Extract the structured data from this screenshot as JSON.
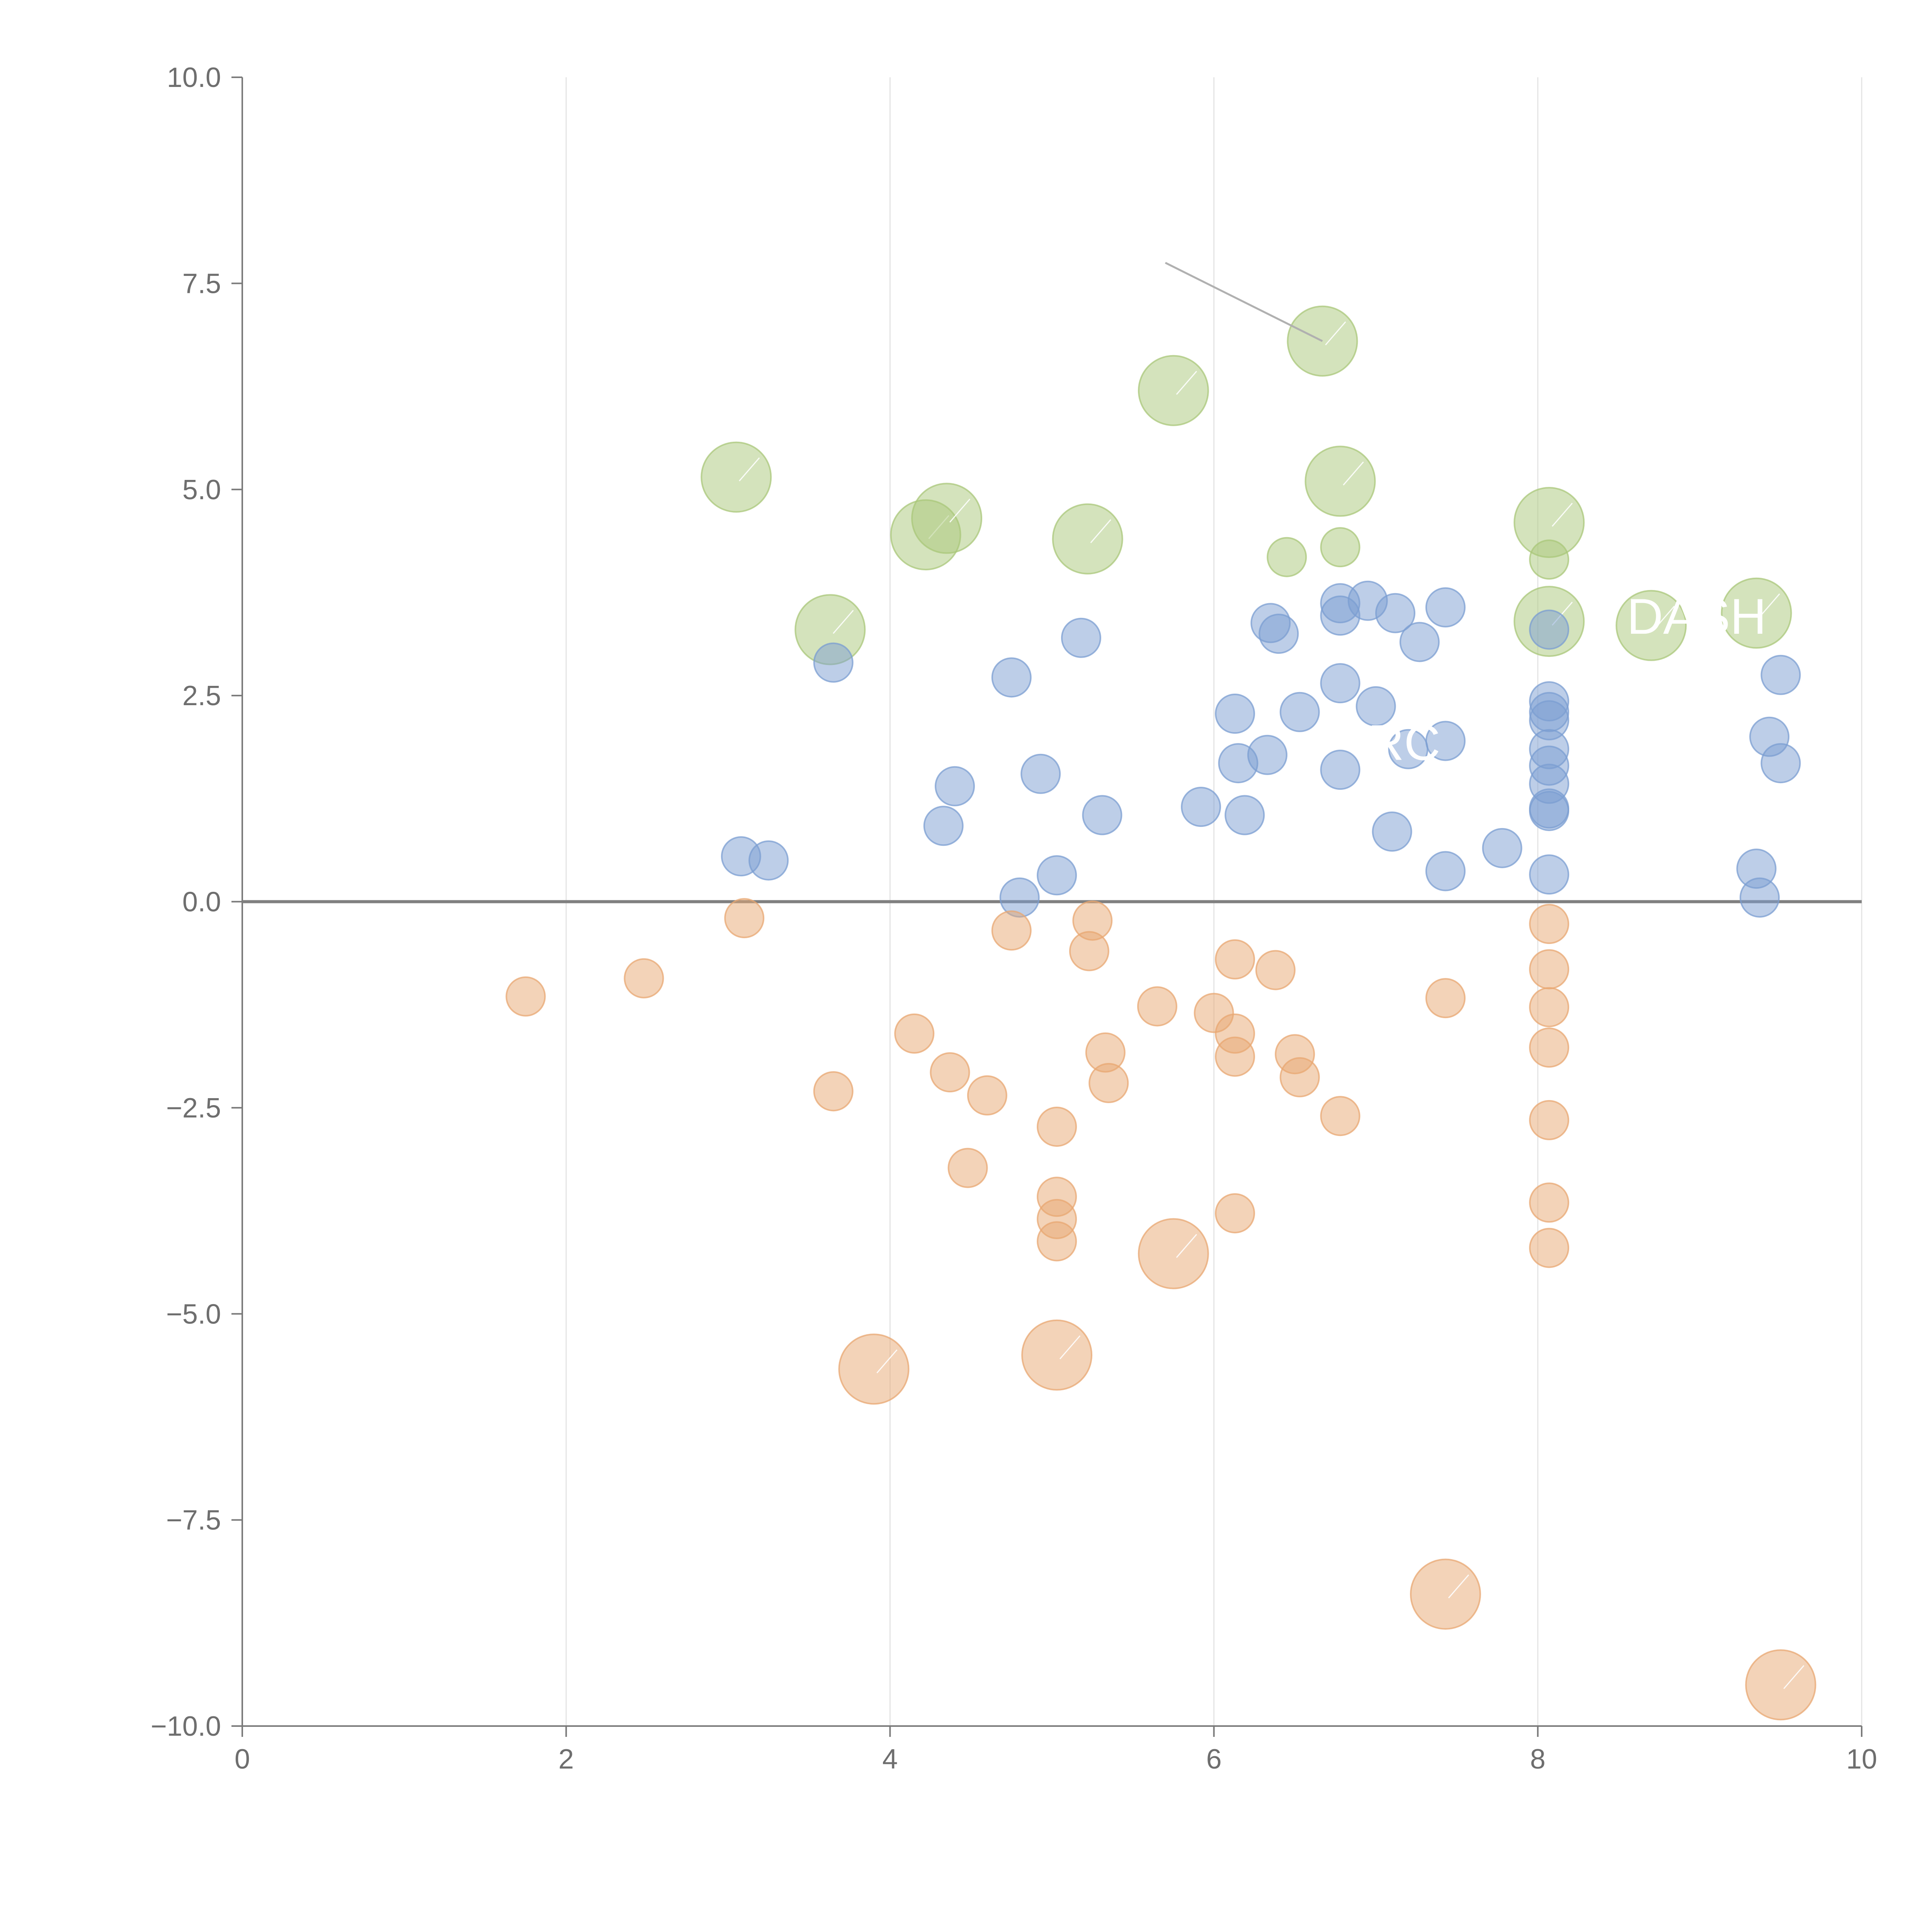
{
  "chart_data": {
    "type": "scatter",
    "subtype": "bubble",
    "title": "",
    "xlabel": "",
    "ylabel": "",
    "xlim": [
      0,
      10
    ],
    "ylim": [
      -10,
      10
    ],
    "x_ticks": [
      0,
      2,
      4,
      6,
      8,
      10
    ],
    "x_tick_labels": [
      "0",
      "2",
      "4",
      "6",
      "8",
      "10"
    ],
    "y_ticks": [
      -10,
      -7.5,
      -5,
      -2.5,
      0,
      2.5,
      5,
      7.5,
      10
    ],
    "y_tick_labels": [
      "−10.0",
      "−7.5",
      "−5.0",
      "−2.5",
      "0.0",
      "2.5",
      "5.0",
      "7.5",
      "10.0"
    ],
    "grid": "vertical",
    "reference_line_y": 0,
    "annotation_labels": [
      "DASH",
      "RC"
    ],
    "series": [
      {
        "name": "green",
        "color": "#a9c77a",
        "points": [
          {
            "x": 3.05,
            "y": 5.15,
            "s": 3
          },
          {
            "x": 4.22,
            "y": 4.45,
            "s": 3
          },
          {
            "x": 4.35,
            "y": 4.65,
            "s": 3
          },
          {
            "x": 5.75,
            "y": 6.2,
            "s": 3
          },
          {
            "x": 6.67,
            "y": 6.8,
            "s": 3
          },
          {
            "x": 6.78,
            "y": 5.1,
            "s": 3
          },
          {
            "x": 5.22,
            "y": 4.4,
            "s": 3
          },
          {
            "x": 8.07,
            "y": 4.6,
            "s": 3
          },
          {
            "x": 3.63,
            "y": 3.3,
            "s": 3
          },
          {
            "x": 8.07,
            "y": 3.4,
            "s": 3
          },
          {
            "x": 8.7,
            "y": 3.35,
            "s": 3
          },
          {
            "x": 9.35,
            "y": 3.5,
            "s": 3
          },
          {
            "x": 6.45,
            "y": 4.18,
            "s": 1
          },
          {
            "x": 6.78,
            "y": 4.3,
            "s": 1
          },
          {
            "x": 8.07,
            "y": 4.15,
            "s": 1
          }
        ]
      },
      {
        "name": "blue",
        "color": "#7b9ed1",
        "points": [
          {
            "x": 3.08,
            "y": 0.55,
            "s": 1
          },
          {
            "x": 3.25,
            "y": 0.5,
            "s": 1
          },
          {
            "x": 3.65,
            "y": 2.9,
            "s": 1
          },
          {
            "x": 4.33,
            "y": 0.92,
            "s": 1
          },
          {
            "x": 4.4,
            "y": 1.4,
            "s": 1
          },
          {
            "x": 4.75,
            "y": 2.72,
            "s": 1
          },
          {
            "x": 4.8,
            "y": 0.05,
            "s": 1
          },
          {
            "x": 4.93,
            "y": 1.55,
            "s": 1
          },
          {
            "x": 5.03,
            "y": 0.32,
            "s": 1
          },
          {
            "x": 5.18,
            "y": 3.2,
            "s": 1
          },
          {
            "x": 5.31,
            "y": 1.05,
            "s": 1
          },
          {
            "x": 5.92,
            "y": 1.15,
            "s": 1
          },
          {
            "x": 6.13,
            "y": 2.28,
            "s": 1
          },
          {
            "x": 6.15,
            "y": 1.68,
            "s": 1
          },
          {
            "x": 6.19,
            "y": 1.05,
            "s": 1
          },
          {
            "x": 6.33,
            "y": 1.78,
            "s": 1
          },
          {
            "x": 6.35,
            "y": 3.38,
            "s": 1
          },
          {
            "x": 6.4,
            "y": 3.25,
            "s": 1
          },
          {
            "x": 6.53,
            "y": 2.3,
            "s": 1
          },
          {
            "x": 6.78,
            "y": 3.62,
            "s": 1
          },
          {
            "x": 6.78,
            "y": 3.47,
            "s": 1
          },
          {
            "x": 6.78,
            "y": 2.65,
            "s": 1
          },
          {
            "x": 6.78,
            "y": 1.6,
            "s": 1
          },
          {
            "x": 6.95,
            "y": 3.65,
            "s": 1
          },
          {
            "x": 7.0,
            "y": 2.37,
            "s": 1
          },
          {
            "x": 7.1,
            "y": 0.85,
            "s": 1
          },
          {
            "x": 7.12,
            "y": 3.5,
            "s": 1
          },
          {
            "x": 7.2,
            "y": 1.85,
            "s": 1
          },
          {
            "x": 7.27,
            "y": 3.15,
            "s": 1
          },
          {
            "x": 7.43,
            "y": 3.57,
            "s": 1
          },
          {
            "x": 7.43,
            "y": 1.95,
            "s": 1
          },
          {
            "x": 7.43,
            "y": 0.37,
            "s": 1
          },
          {
            "x": 7.78,
            "y": 0.65,
            "s": 1
          },
          {
            "x": 8.07,
            "y": 3.3,
            "s": 1
          },
          {
            "x": 8.07,
            "y": 2.43,
            "s": 1
          },
          {
            "x": 8.07,
            "y": 2.3,
            "s": 1
          },
          {
            "x": 8.07,
            "y": 2.2,
            "s": 1
          },
          {
            "x": 8.07,
            "y": 1.85,
            "s": 1
          },
          {
            "x": 8.07,
            "y": 1.65,
            "s": 1
          },
          {
            "x": 8.07,
            "y": 1.43,
            "s": 1
          },
          {
            "x": 8.07,
            "y": 1.13,
            "s": 1
          },
          {
            "x": 8.07,
            "y": 1.1,
            "s": 1
          },
          {
            "x": 8.07,
            "y": 0.33,
            "s": 1
          },
          {
            "x": 9.35,
            "y": 0.4,
            "s": 1
          },
          {
            "x": 9.37,
            "y": 0.05,
            "s": 1
          },
          {
            "x": 9.43,
            "y": 2.0,
            "s": 1
          },
          {
            "x": 9.5,
            "y": 2.75,
            "s": 1
          },
          {
            "x": 9.5,
            "y": 1.68,
            "s": 1
          }
        ]
      },
      {
        "name": "orange",
        "color": "#e8a772",
        "points": [
          {
            "x": 1.75,
            "y": -1.15,
            "s": 1
          },
          {
            "x": 2.48,
            "y": -0.93,
            "s": 1
          },
          {
            "x": 3.1,
            "y": -0.2,
            "s": 1
          },
          {
            "x": 3.65,
            "y": -2.3,
            "s": 1
          },
          {
            "x": 4.15,
            "y": -1.6,
            "s": 1
          },
          {
            "x": 4.37,
            "y": -2.07,
            "s": 1
          },
          {
            "x": 4.48,
            "y": -3.23,
            "s": 1
          },
          {
            "x": 4.6,
            "y": -2.35,
            "s": 1
          },
          {
            "x": 4.75,
            "y": -0.35,
            "s": 1
          },
          {
            "x": 5.03,
            "y": -2.73,
            "s": 1
          },
          {
            "x": 5.03,
            "y": -3.58,
            "s": 1
          },
          {
            "x": 5.03,
            "y": -3.85,
            "s": 1
          },
          {
            "x": 5.03,
            "y": -4.12,
            "s": 1
          },
          {
            "x": 5.23,
            "y": -0.6,
            "s": 1
          },
          {
            "x": 5.25,
            "y": -0.23,
            "s": 1
          },
          {
            "x": 5.33,
            "y": -1.83,
            "s": 1
          },
          {
            "x": 5.35,
            "y": -2.2,
            "s": 1
          },
          {
            "x": 5.65,
            "y": -1.27,
            "s": 1
          },
          {
            "x": 6.0,
            "y": -1.35,
            "s": 1
          },
          {
            "x": 6.13,
            "y": -0.7,
            "s": 1
          },
          {
            "x": 6.13,
            "y": -1.6,
            "s": 1
          },
          {
            "x": 6.13,
            "y": -1.88,
            "s": 1
          },
          {
            "x": 6.13,
            "y": -3.78,
            "s": 1
          },
          {
            "x": 6.38,
            "y": -0.83,
            "s": 1
          },
          {
            "x": 6.5,
            "y": -1.85,
            "s": 1
          },
          {
            "x": 6.53,
            "y": -2.13,
            "s": 1
          },
          {
            "x": 6.78,
            "y": -2.6,
            "s": 1
          },
          {
            "x": 7.43,
            "y": -1.17,
            "s": 1
          },
          {
            "x": 8.07,
            "y": -0.27,
            "s": 1
          },
          {
            "x": 8.07,
            "y": -0.82,
            "s": 1
          },
          {
            "x": 8.07,
            "y": -1.28,
            "s": 1
          },
          {
            "x": 8.07,
            "y": -1.77,
            "s": 1
          },
          {
            "x": 8.07,
            "y": -2.65,
            "s": 1
          },
          {
            "x": 8.07,
            "y": -3.65,
            "s": 1
          },
          {
            "x": 8.07,
            "y": -4.2,
            "s": 1
          },
          {
            "x": 5.75,
            "y": -4.27,
            "s": 3
          },
          {
            "x": 3.9,
            "y": -5.67,
            "s": 3
          },
          {
            "x": 5.03,
            "y": -5.5,
            "s": 3
          },
          {
            "x": 7.43,
            "y": -8.4,
            "s": 3
          },
          {
            "x": 9.5,
            "y": -9.5,
            "s": 3
          }
        ]
      }
    ]
  }
}
